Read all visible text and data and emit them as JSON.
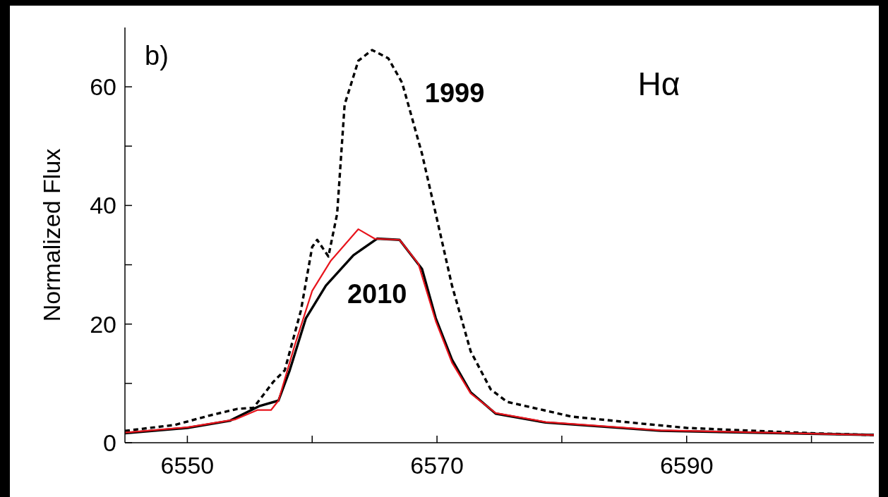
{
  "chart_data": {
    "type": "line",
    "title": "Hα",
    "ylabel": "Normalized Flux",
    "annotations": [
      "b)"
    ],
    "xlim": [
      6545,
      6605
    ],
    "xticks": [
      6550,
      {
        "value": 6560,
        "label": null
      },
      6570,
      {
        "value": 6580,
        "label": null
      },
      6590,
      {
        "value": 6600,
        "label": null
      }
    ],
    "ylim": [
      0,
      70
    ],
    "yticks": [
      0,
      {
        "value": 10,
        "label": null
      },
      20,
      {
        "value": 30,
        "label": null
      },
      40,
      {
        "value": 50,
        "label": null
      },
      60
    ],
    "grid": false,
    "legend": false,
    "marker": "none",
    "series": [
      {
        "name": "1999",
        "color": "#000000",
        "line_style": "dashed",
        "x": [
          6545,
          6549,
          6551.8,
          6554,
          6555.3,
          6556.9,
          6557.8,
          6559.1,
          6560.0,
          6560.4,
          6561.3,
          6562.0,
          6562.6,
          6563.7,
          6564.8,
          6566.1,
          6567.2,
          6567.7,
          6568.8,
          6569.9,
          6571.2,
          6572.7,
          6574.3,
          6575.6,
          6580.8,
          6586.5,
          6590,
          6600,
          6605
        ],
        "values": [
          2.0,
          3.0,
          4.6,
          5.7,
          5.9,
          10.3,
          12.2,
          22.3,
          33,
          34.2,
          31.4,
          38.6,
          57,
          64.4,
          66.2,
          64.8,
          60.7,
          57,
          48.7,
          38.6,
          26.5,
          15.4,
          9.0,
          6.9,
          4.4,
          3.2,
          2.5,
          1.6,
          1.3
        ]
      },
      {
        "name": "2010",
        "color": "#000000",
        "line_style": "solid",
        "x": [
          6545,
          6550,
          6553.4,
          6555.8,
          6557.3,
          6558.2,
          6559.5,
          6561.1,
          6563.3,
          6565.2,
          6567.0,
          6568.8,
          6569.9,
          6571.2,
          6572.7,
          6574.7,
          6578.7,
          6587.9,
          6605
        ],
        "values": [
          1.6,
          2.5,
          3.7,
          6.2,
          7.1,
          12.2,
          21,
          26.5,
          31.6,
          34.4,
          34.2,
          29.3,
          21,
          14.0,
          8.5,
          4.9,
          3.4,
          2.0,
          1.3
        ]
      },
      {
        "color": "#e8141c",
        "line_style": "solid",
        "x": [
          6545,
          6550,
          6553.8,
          6555.6,
          6556.7,
          6557.3,
          6558.6,
          6560.0,
          6561.5,
          6563.7,
          6565.0,
          6567.0,
          6568.5,
          6569.9,
          6571.2,
          6572.7,
          6574.7,
          6578.7,
          6587.9,
          6605
        ],
        "values": [
          1.7,
          2.6,
          3.9,
          5.5,
          5.5,
          7.1,
          16.4,
          25.6,
          30.7,
          36,
          34.4,
          34.2,
          30.2,
          20.5,
          13.5,
          8.3,
          5.0,
          3.5,
          2.1,
          1.3
        ]
      }
    ]
  }
}
